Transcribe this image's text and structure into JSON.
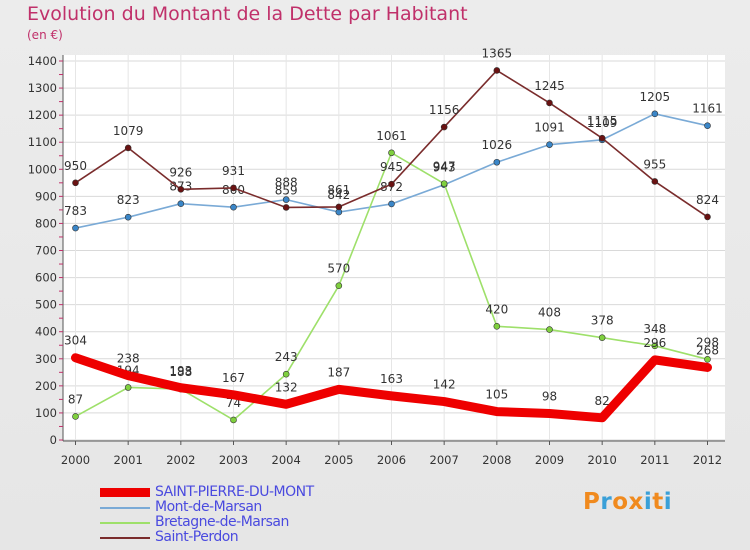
{
  "chart_data": {
    "type": "line",
    "title": "Evolution du Montant de la Dette par Habitant",
    "unit": "(en €)",
    "x": [
      "2000",
      "2001",
      "2002",
      "2003",
      "2004",
      "2005",
      "2006",
      "2007",
      "2008",
      "2009",
      "2010",
      "2011",
      "2012"
    ],
    "ylim": [
      0,
      1400
    ],
    "yticks": [
      "0",
      "100",
      "200",
      "300",
      "400",
      "500",
      "600",
      "700",
      "800",
      "900",
      "1000",
      "1100",
      "1200",
      "1300",
      "1400"
    ],
    "grid": true,
    "legend_position": "bottom-left",
    "series": [
      {
        "name": "SAINT-PIERRE-DU-MONT",
        "color": "#ee0000",
        "values": [
          304,
          238,
          193,
          167,
          132,
          187,
          163,
          142,
          105,
          98,
          82,
          296,
          268
        ],
        "labels": [
          "304",
          "238",
          "193",
          "167",
          "132",
          "187",
          "163",
          "142",
          "105",
          "98",
          "82",
          "296",
          "268"
        ]
      },
      {
        "name": "Mont-de-Marsan",
        "color": "#7aaad6",
        "values": [
          783,
          823,
          873,
          860,
          888,
          842,
          872,
          943,
          1026,
          1091,
          1109,
          1205,
          1161
        ],
        "labels": [
          "783",
          "823",
          "873",
          "860",
          "888",
          "842",
          "872",
          "943",
          "1026",
          "1091",
          "1109",
          "1205",
          "1161"
        ]
      },
      {
        "name": "Bretagne-de-Marsan",
        "color": "#9ee06a",
        "values": [
          87,
          194,
          188,
          74,
          243,
          570,
          1061,
          947,
          420,
          408,
          378,
          348,
          298
        ],
        "labels": [
          "87",
          "194",
          "188",
          "74",
          "243",
          "570",
          "1061",
          "947",
          "420",
          "408",
          "378",
          "348",
          "298"
        ]
      },
      {
        "name": "Saint-Perdon",
        "color": "#7a2c2c",
        "values": [
          950,
          1079,
          926,
          931,
          859,
          861,
          945,
          1156,
          1365,
          1245,
          1115,
          955,
          824
        ],
        "labels": [
          "950",
          "1079",
          "926",
          "931",
          "859",
          "861",
          "945",
          "1156",
          "1365",
          "1245",
          "1115",
          "955",
          "824"
        ]
      }
    ]
  },
  "logo": {
    "text": "Proxiti",
    "letters": [
      "P",
      "r",
      "o",
      "x",
      "i",
      "t",
      "i"
    ],
    "colors": [
      "#f08a1e",
      "#3aa0d8",
      "#f08a1e",
      "#f08a1e",
      "#3aa0d8",
      "#f08a1e",
      "#3aa0d8"
    ]
  }
}
